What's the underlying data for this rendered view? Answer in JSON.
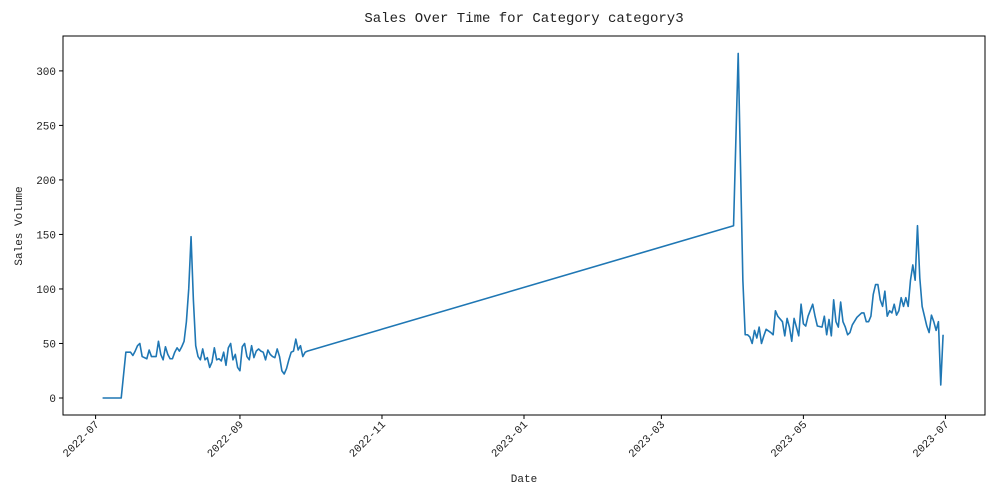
{
  "chart_data": {
    "type": "line",
    "title": "Sales Over Time for Category category3",
    "x_label": "Date",
    "y_label": "Sales Volume",
    "xlim": [
      "2022-06-17",
      "2023-07-18"
    ],
    "ylim": [
      -15.6,
      332
    ],
    "xticks": [
      "2022-07",
      "2022-09",
      "2022-11",
      "2023-01",
      "2023-03",
      "2023-05",
      "2023-07"
    ],
    "yticks": [
      0,
      50,
      100,
      150,
      200,
      250,
      300
    ],
    "series": [
      {
        "name": "category3",
        "color": "#1f77b4",
        "x": [
          "2022-07-04",
          "2022-07-12",
          "2022-07-14",
          "2022-07-16",
          "2022-07-17",
          "2022-07-18",
          "2022-07-19",
          "2022-07-20",
          "2022-07-21",
          "2022-07-23",
          "2022-07-24",
          "2022-07-25",
          "2022-07-27",
          "2022-07-28",
          "2022-07-29",
          "2022-07-30",
          "2022-07-31",
          "2022-08-01",
          "2022-08-02",
          "2022-08-03",
          "2022-08-04",
          "2022-08-05",
          "2022-08-06",
          "2022-08-07",
          "2022-08-08",
          "2022-08-09",
          "2022-08-10",
          "2022-08-11",
          "2022-08-12",
          "2022-08-13",
          "2022-08-14",
          "2022-08-15",
          "2022-08-16",
          "2022-08-17",
          "2022-08-18",
          "2022-08-19",
          "2022-08-20",
          "2022-08-21",
          "2022-08-22",
          "2022-08-23",
          "2022-08-24",
          "2022-08-25",
          "2022-08-26",
          "2022-08-27",
          "2022-08-28",
          "2022-08-29",
          "2022-08-30",
          "2022-08-31",
          "2022-09-01",
          "2022-09-02",
          "2022-09-03",
          "2022-09-04",
          "2022-09-05",
          "2022-09-06",
          "2022-09-07",
          "2022-09-08",
          "2022-09-09",
          "2022-09-10",
          "2022-09-11",
          "2022-09-12",
          "2022-09-13",
          "2022-09-14",
          "2022-09-15",
          "2022-09-16",
          "2022-09-17",
          "2022-09-18",
          "2022-09-19",
          "2022-09-20",
          "2022-09-21",
          "2022-09-22",
          "2022-09-23",
          "2022-09-24",
          "2022-09-25",
          "2022-09-26",
          "2022-09-27",
          "2022-09-28",
          "2022-09-29",
          "2022-09-30",
          "2023-04-01",
          "2023-04-03",
          "2023-04-05",
          "2023-04-06",
          "2023-04-07",
          "2023-04-08",
          "2023-04-09",
          "2023-04-10",
          "2023-04-11",
          "2023-04-12",
          "2023-04-13",
          "2023-04-14",
          "2023-04-15",
          "2023-04-17",
          "2023-04-18",
          "2023-04-19",
          "2023-04-20",
          "2023-04-22",
          "2023-04-23",
          "2023-04-24",
          "2023-04-25",
          "2023-04-26",
          "2023-04-27",
          "2023-04-28",
          "2023-04-29",
          "2023-04-30",
          "2023-05-01",
          "2023-05-02",
          "2023-05-03",
          "2023-05-05",
          "2023-05-06",
          "2023-05-07",
          "2023-05-09",
          "2023-05-10",
          "2023-05-11",
          "2023-05-12",
          "2023-05-13",
          "2023-05-14",
          "2023-05-15",
          "2023-05-16",
          "2023-05-17",
          "2023-05-18",
          "2023-05-19",
          "2023-05-20",
          "2023-05-21",
          "2023-05-22",
          "2023-05-24",
          "2023-05-26",
          "2023-05-27",
          "2023-05-28",
          "2023-05-29",
          "2023-05-30",
          "2023-05-31",
          "2023-06-01",
          "2023-06-02",
          "2023-06-03",
          "2023-06-04",
          "2023-06-05",
          "2023-06-06",
          "2023-06-07",
          "2023-06-08",
          "2023-06-09",
          "2023-06-10",
          "2023-06-11",
          "2023-06-12",
          "2023-06-13",
          "2023-06-14",
          "2023-06-15",
          "2023-06-16",
          "2023-06-17",
          "2023-06-18",
          "2023-06-19",
          "2023-06-20",
          "2023-06-21",
          "2023-06-22",
          "2023-06-23",
          "2023-06-24",
          "2023-06-25",
          "2023-06-26",
          "2023-06-27",
          "2023-06-28",
          "2023-06-29",
          "2023-06-30"
        ],
        "values": [
          0,
          0,
          42,
          42,
          39,
          43,
          48,
          50,
          38,
          36,
          44,
          38,
          38,
          52,
          40,
          35,
          47,
          40,
          36,
          36,
          42,
          46,
          43,
          47,
          52,
          70,
          100,
          148,
          90,
          48,
          38,
          35,
          45,
          35,
          37,
          28,
          33,
          46,
          35,
          36,
          34,
          42,
          30,
          46,
          50,
          35,
          40,
          28,
          25,
          47,
          50,
          38,
          35,
          48,
          37,
          43,
          45,
          43,
          42,
          35,
          44,
          40,
          38,
          37,
          45,
          38,
          25,
          22,
          27,
          35,
          42,
          43,
          54,
          44,
          48,
          38,
          42,
          43,
          158,
          316,
          108,
          58,
          58,
          56,
          50,
          62,
          55,
          65,
          50,
          57,
          63,
          60,
          58,
          80,
          75,
          70,
          57,
          73,
          65,
          52,
          73,
          65,
          57,
          86,
          68,
          66,
          75,
          86,
          75,
          66,
          65,
          75,
          58,
          72,
          57,
          90,
          70,
          65,
          88,
          70,
          65,
          58,
          60,
          67,
          74,
          78,
          78,
          70,
          70,
          75,
          95,
          104,
          104,
          90,
          84,
          98,
          75,
          80,
          78,
          86,
          76,
          80,
          92,
          84,
          92,
          84,
          108,
          122,
          108,
          158,
          110,
          84,
          75,
          66,
          60,
          76,
          70,
          62,
          70,
          12,
          58
        ]
      }
    ]
  }
}
